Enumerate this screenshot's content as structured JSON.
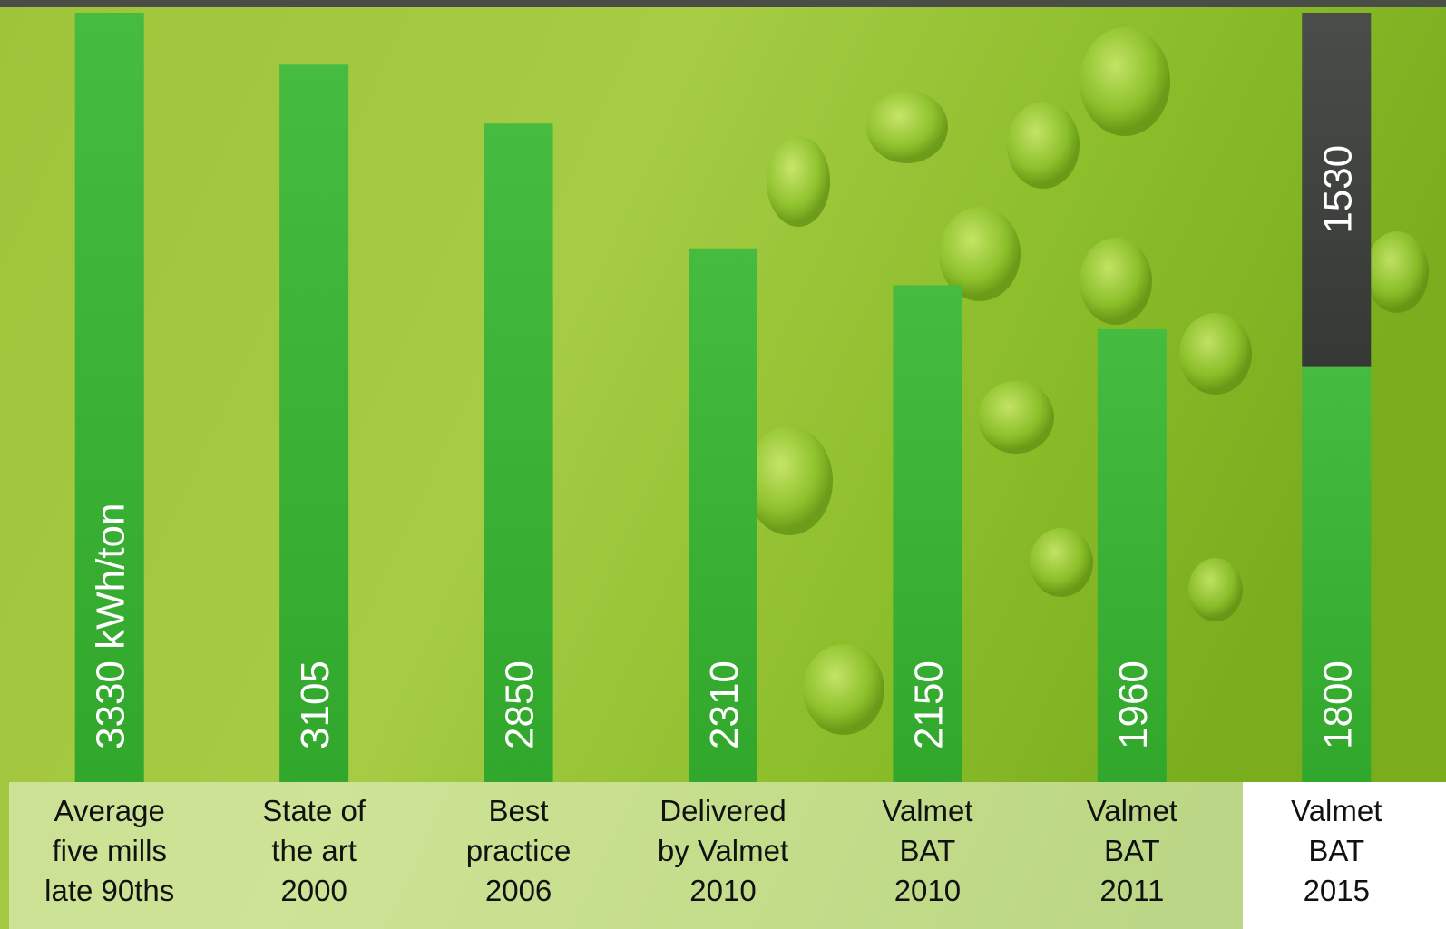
{
  "chart_data": {
    "type": "bar",
    "categories": [
      [
        "Average",
        "five mills",
        "late 90ths"
      ],
      [
        "State of",
        "the art",
        "2000"
      ],
      [
        "Best",
        "practice",
        "2006"
      ],
      [
        "Delivered",
        "by Valmet",
        "2010"
      ],
      [
        "Valmet",
        "BAT",
        "2010"
      ],
      [
        "Valmet",
        "BAT",
        "2011"
      ],
      [
        "Valmet",
        "BAT",
        "2015"
      ]
    ],
    "stacked": true,
    "series": [
      {
        "color": "#35b62f",
        "values": [
          3330,
          3105,
          2850,
          2310,
          2150,
          1960,
          1800
        ],
        "value_labels": [
          "3330 kWh/ton",
          "3105",
          "2850",
          "2310",
          "2150",
          "1960",
          "1800"
        ]
      },
      {
        "color": "#3a3d3a",
        "values": [
          null,
          null,
          null,
          null,
          null,
          null,
          1530
        ]
      }
    ]
  }
}
